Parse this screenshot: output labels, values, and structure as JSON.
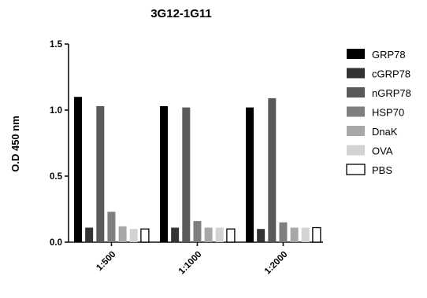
{
  "chart_data": {
    "type": "bar",
    "title": "3G12-1G11",
    "xlabel": "",
    "ylabel": "O.D 450 nm",
    "ylim": [
      0,
      1.5
    ],
    "yticks": [
      "0.0",
      "0.5",
      "1.0",
      "1.5"
    ],
    "ytick_values": [
      0,
      0.5,
      1.0,
      1.5
    ],
    "grid": false,
    "legend_position": "right",
    "categories": [
      "1:500",
      "1:1000",
      "1:2000"
    ],
    "series": [
      {
        "name": "GRP78",
        "color": "#000000",
        "values": [
          1.1,
          1.03,
          1.02
        ]
      },
      {
        "name": "cGRP78",
        "color": "#333333",
        "values": [
          0.11,
          0.11,
          0.1
        ]
      },
      {
        "name": "nGRP78",
        "color": "#5a5a5a",
        "values": [
          1.03,
          1.02,
          1.09
        ]
      },
      {
        "name": "HSP70",
        "color": "#7f7f7f",
        "values": [
          0.23,
          0.16,
          0.15
        ]
      },
      {
        "name": "DnaK",
        "color": "#a8a8a8",
        "values": [
          0.12,
          0.11,
          0.11
        ]
      },
      {
        "name": "OVA",
        "color": "#d3d3d3",
        "values": [
          0.1,
          0.11,
          0.11
        ]
      },
      {
        "name": "PBS",
        "color": "#ffffff",
        "values": [
          0.1,
          0.1,
          0.11
        ]
      }
    ]
  }
}
